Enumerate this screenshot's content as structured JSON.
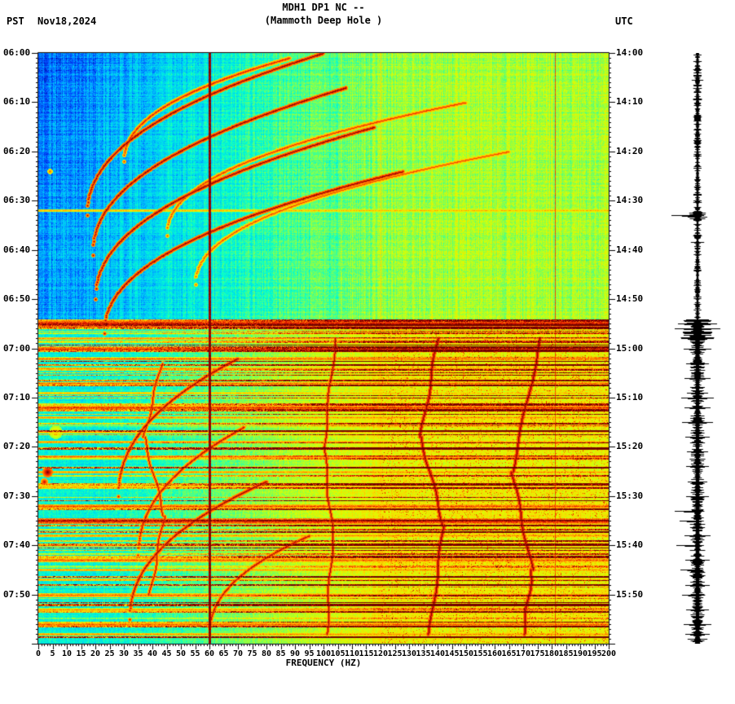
{
  "header": {
    "title_line1": "MDH1 DP1 NC --",
    "title_line2": "(Mammoth Deep Hole )",
    "left_timezone": "PST",
    "date": "Nov18,2024",
    "right_timezone": "UTC"
  },
  "axes": {
    "x_label": "FREQUENCY (HZ)",
    "left_ticks": [
      "06:00",
      "06:10",
      "06:20",
      "06:30",
      "06:40",
      "06:50",
      "07:00",
      "07:10",
      "07:20",
      "07:30",
      "07:40",
      "07:50"
    ],
    "right_ticks": [
      "14:00",
      "14:10",
      "14:20",
      "14:30",
      "14:40",
      "14:50",
      "15:00",
      "15:10",
      "15:20",
      "15:30",
      "15:40",
      "15:50"
    ],
    "x_ticks": [
      "0",
      "5",
      "10",
      "15",
      "20",
      "25",
      "30",
      "35",
      "40",
      "45",
      "50",
      "55",
      "60",
      "65",
      "70",
      "75",
      "80",
      "85",
      "90",
      "95",
      "100",
      "105",
      "110",
      "115",
      "120",
      "125",
      "130",
      "135",
      "140",
      "145",
      "150",
      "155",
      "160",
      "165",
      "170",
      "175",
      "180",
      "185",
      "190",
      "195",
      "200"
    ]
  },
  "chart_data": {
    "type": "heatmap",
    "subtype": "seismic spectrogram with seismogram amplitude strip",
    "station": "MDH1 DP1 NC",
    "station_description": "Mammoth Deep Hole",
    "date": "Nov18,2024",
    "freq_axis": {
      "min_hz": 0,
      "max_hz": 200,
      "tick_step_hz": 5,
      "label": "FREQUENCY (HZ)"
    },
    "time_axis": {
      "left_zone": "PST",
      "right_zone": "UTC",
      "start_pst": "06:00",
      "end_pst": "08:00",
      "start_utc": "14:00",
      "end_utc": "16:00",
      "tick_step_min": 10
    },
    "colormap_stops": [
      [
        0,
        "#00008c"
      ],
      [
        0.12,
        "#0046ff"
      ],
      [
        0.25,
        "#00beff"
      ],
      [
        0.38,
        "#00ffd2"
      ],
      [
        0.5,
        "#78ff5a"
      ],
      [
        0.62,
        "#dcff00"
      ],
      [
        0.72,
        "#ffd200"
      ],
      [
        0.82,
        "#ff7800"
      ],
      [
        0.9,
        "#eb1e00"
      ],
      [
        1,
        "#6e0000"
      ]
    ],
    "regions": {
      "transition_start": "06:54",
      "upper_background": "quiet blue/cyan with gliding harmonic arcs",
      "lower_background": "high-amplitude green/yellow/orange with many broadband red event stripes"
    },
    "features": {
      "vertical_lines": [
        {
          "hz": 60,
          "width": 3,
          "strength": 1
        },
        {
          "hz": 120,
          "width": 1,
          "strength": 0.72
        },
        {
          "hz": 181,
          "width": 1,
          "strength": 0.88
        }
      ],
      "arcs": [
        {
          "f0": 17,
          "f1": 100,
          "t_start": "06:33",
          "t_end": "06:00",
          "strength": 0.97
        },
        {
          "f0": 19,
          "f1": 108,
          "t_start": "06:41",
          "t_end": "06:07",
          "strength": 0.97
        },
        {
          "f0": 20,
          "f1": 118,
          "t_start": "06:50",
          "t_end": "06:15",
          "strength": 0.97
        },
        {
          "f0": 23,
          "f1": 128,
          "t_start": "06:57",
          "t_end": "06:24",
          "strength": 0.97
        },
        {
          "f0": 30,
          "f1": 88,
          "t_start": "06:22",
          "t_end": "06:01",
          "strength": 0.9
        },
        {
          "f0": 45,
          "f1": 150,
          "t_start": "06:37",
          "t_end": "06:10",
          "strength": 0.88
        },
        {
          "f0": 55,
          "f1": 165,
          "t_start": "06:47",
          "t_end": "06:20",
          "strength": 0.86
        },
        {
          "f0": 28,
          "f1": 70,
          "t_start": "07:30",
          "t_end": "07:02",
          "strength": 0.95
        },
        {
          "f0": 32,
          "f1": 80,
          "t_start": "07:55",
          "t_end": "07:27",
          "strength": 0.95
        },
        {
          "f0": 35,
          "f1": 72,
          "t_start": "07:42",
          "t_end": "07:16",
          "strength": 0.93
        },
        {
          "f0": 60,
          "f1": 95,
          "t_start": "07:58",
          "t_end": "07:38",
          "strength": 0.93
        }
      ],
      "glides": [
        {
          "path": [
            [
              104,
              "06:58"
            ],
            [
              100,
              "07:20"
            ],
            [
              103,
              "07:38"
            ],
            [
              101,
              "07:58"
            ]
          ],
          "width": 1.6,
          "strength": 0.95
        },
        {
          "path": [
            [
              140,
              "06:58"
            ],
            [
              134,
              "07:18"
            ],
            [
              142,
              "07:36"
            ],
            [
              137,
              "07:58"
            ]
          ],
          "width": 2.2,
          "strength": 0.97
        },
        {
          "path": [
            [
              176,
              "06:58"
            ],
            [
              166,
              "07:25"
            ],
            [
              173,
              "07:45"
            ],
            [
              170,
              "07:58"
            ]
          ],
          "width": 2.2,
          "strength": 0.97
        },
        {
          "path": [
            [
              43,
              "07:03"
            ],
            [
              37,
              "07:18"
            ],
            [
              44,
              "07:34"
            ],
            [
              39,
              "07:50"
            ]
          ],
          "width": 1.6,
          "strength": 0.93
        }
      ],
      "bands": [
        {
          "t": "06:32",
          "half_h": 1,
          "strength": 0.8
        },
        {
          "t": "06:55",
          "half_h": 4,
          "strength": 1.0
        },
        {
          "t": "06:58",
          "half_h": 1,
          "strength": 0.85
        },
        {
          "t": "07:00",
          "half_h": 2,
          "strength": 0.95
        },
        {
          "t": "07:02",
          "half_h": 1,
          "strength": 0.9
        },
        {
          "t": "07:04",
          "half_h": 1,
          "strength": 0.85
        },
        {
          "t": "07:07",
          "half_h": 1,
          "strength": 0.9
        },
        {
          "t": "07:09",
          "half_h": 1,
          "strength": 0.8
        },
        {
          "t": "07:12",
          "half_h": 2,
          "strength": 0.95
        },
        {
          "t": "07:14",
          "half_h": 1,
          "strength": 0.85
        },
        {
          "t": "07:17",
          "half_h": 1,
          "strength": 0.8
        },
        {
          "t": "07:19",
          "half_h": 1,
          "strength": 0.85
        },
        {
          "t": "07:22",
          "half_h": 1,
          "strength": 0.9
        },
        {
          "t": "07:25",
          "half_h": 1,
          "strength": 0.85
        },
        {
          "t": "07:28",
          "half_h": 1,
          "strength": 0.8
        },
        {
          "t": "07:32",
          "half_h": 2,
          "strength": 0.92
        },
        {
          "t": "07:35",
          "half_h": 3,
          "strength": 1.0
        },
        {
          "t": "07:38",
          "half_h": 1,
          "strength": 0.85
        },
        {
          "t": "07:40",
          "half_h": 1,
          "strength": 0.82
        },
        {
          "t": "07:43",
          "half_h": 2,
          "strength": 0.9
        },
        {
          "t": "07:45",
          "half_h": 1,
          "strength": 0.85
        },
        {
          "t": "07:47",
          "half_h": 1,
          "strength": 0.82
        },
        {
          "t": "07:50",
          "half_h": 2,
          "strength": 0.88
        },
        {
          "t": "07:53",
          "half_h": 1,
          "strength": 0.85
        },
        {
          "t": "07:56",
          "half_h": 2,
          "strength": 0.9
        },
        {
          "t": "07:58",
          "half_h": 1,
          "strength": 0.85
        }
      ],
      "blobs": [
        {
          "hz": 3,
          "t": "07:25",
          "r": 6,
          "strength": 1.0
        },
        {
          "hz": 2,
          "t": "07:27",
          "r": 4,
          "strength": 0.95
        },
        {
          "hz": 6,
          "t": "07:17",
          "r": 8,
          "strength": 0.75
        },
        {
          "hz": 4,
          "t": "06:24",
          "r": 3,
          "strength": 0.85
        }
      ]
    },
    "seismogram": {
      "envelope": [
        {
          "from": "14:00",
          "to": "14:32",
          "amp": 5
        },
        {
          "from": "14:32",
          "to": "14:34",
          "amp": 12
        },
        {
          "from": "14:34",
          "to": "14:54",
          "amp": 4.5
        },
        {
          "from": "14:54",
          "to": "14:58",
          "amp": 20
        },
        {
          "from": "14:58",
          "to": "16:00",
          "amp": 9
        }
      ],
      "spikes": [
        {
          "t": "14:33",
          "amp": 32,
          "bias": 0.25
        },
        {
          "t": "14:55",
          "amp": 24
        },
        {
          "t": "14:56",
          "amp": 28
        },
        {
          "t": "14:58",
          "amp": 20
        },
        {
          "t": "15:00",
          "amp": 17
        },
        {
          "t": "15:03",
          "amp": 14
        },
        {
          "t": "15:06",
          "amp": 16
        },
        {
          "t": "15:09",
          "amp": 13
        },
        {
          "t": "15:10",
          "amp": 20
        },
        {
          "t": "15:12",
          "amp": 16
        },
        {
          "t": "15:15",
          "amp": 19
        },
        {
          "t": "15:18",
          "amp": 15
        },
        {
          "t": "15:21",
          "amp": 13
        },
        {
          "t": "15:24",
          "amp": 14
        },
        {
          "t": "15:27",
          "amp": 12
        },
        {
          "t": "15:30",
          "amp": 14
        },
        {
          "t": "15:33",
          "amp": 28,
          "bias": 0.3
        },
        {
          "t": "15:35",
          "amp": 22,
          "bias": 0.35
        },
        {
          "t": "15:38",
          "amp": 16
        },
        {
          "t": "15:40",
          "amp": 26,
          "bias": 0.3
        },
        {
          "t": "15:43",
          "amp": 15
        },
        {
          "t": "15:45",
          "amp": 21,
          "bias": 0.35
        },
        {
          "t": "15:48",
          "amp": 15
        },
        {
          "t": "15:50",
          "amp": 19,
          "bias": 0.4
        },
        {
          "t": "15:53",
          "amp": 14
        },
        {
          "t": "15:56",
          "amp": 17
        },
        {
          "t": "15:58",
          "amp": 15
        }
      ]
    }
  }
}
